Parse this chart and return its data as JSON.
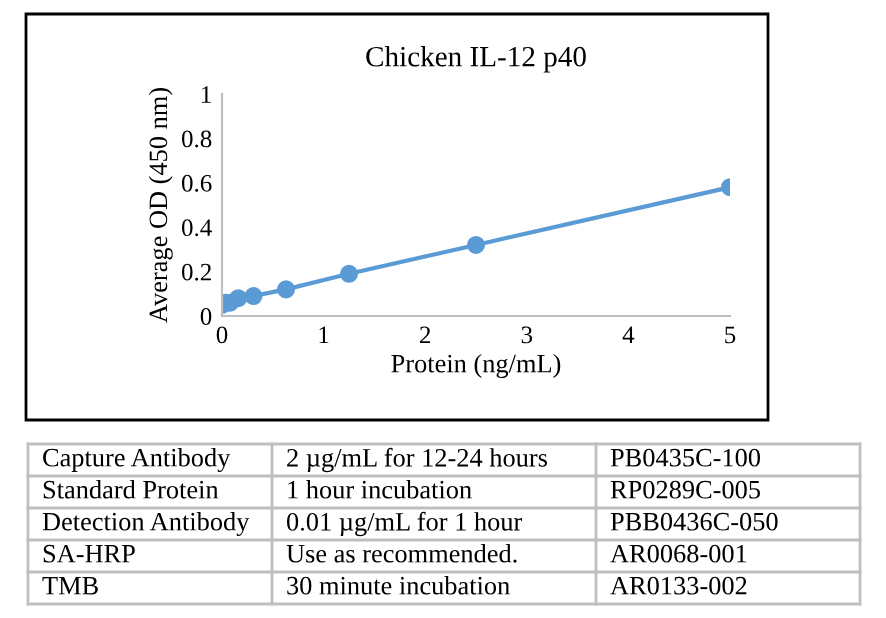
{
  "chart_data": {
    "type": "line",
    "title": "Chicken IL-12 p40",
    "xlabel": "Protein (ng/mL)",
    "ylabel": "Average OD (450 nm)",
    "x": [
      0,
      0.04,
      0.08,
      0.16,
      0.31,
      0.63,
      1.25,
      2.5,
      5
    ],
    "series": [
      {
        "color": "#5b9bd5",
        "values": [
          0.05,
          0.06,
          0.06,
          0.08,
          0.09,
          0.12,
          0.19,
          0.32,
          0.58
        ]
      }
    ],
    "xlim": [
      0,
      5
    ],
    "xticks": [
      0,
      1,
      2,
      3,
      4,
      5
    ],
    "ylim": [
      0,
      1
    ],
    "yticks": [
      0,
      0.2,
      0.4,
      0.6,
      0.8,
      1
    ],
    "marker": "circle",
    "line_style": "solid",
    "grid": false,
    "legend": false,
    "annotations": [
      "Capture Antibody",
      "2 µg/mL for 12-24 hours",
      "PB0435C-100",
      "Standard Protein",
      "1 hour incubation",
      "RP0289C-005",
      "Detection Antibody",
      "0.01 µg/mL for 1 hour",
      "PBB0436C-050",
      "SA-HRP",
      "Use as recommended.",
      "AR0068-001",
      "TMB",
      "30 minute incubation",
      "AR0133-002"
    ]
  }
}
